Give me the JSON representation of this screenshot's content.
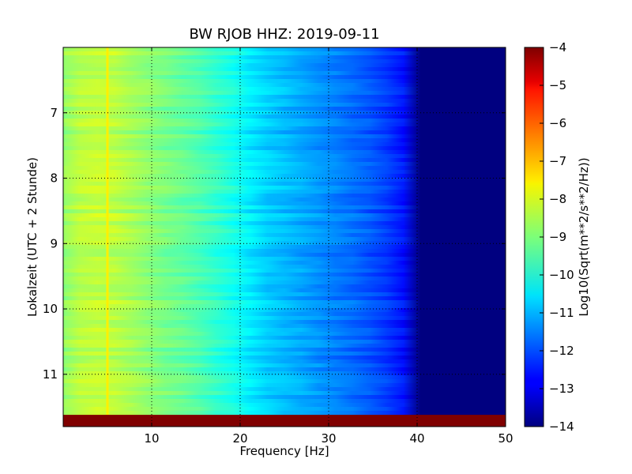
{
  "chart_data": {
    "type": "heatmap",
    "title": "BW RJOB HHZ: 2019-09-11",
    "xlabel": "Frequency [Hz]",
    "ylabel": "Lokalzeit (UTC + 2 Stunde)",
    "colorbar_label": "Log10(Sqrt(m**2/s**2/Hz))",
    "x_range": [
      0,
      50
    ],
    "y_range": [
      6.0,
      11.8
    ],
    "y_inverted": true,
    "x_ticks": [
      10,
      20,
      30,
      40,
      50
    ],
    "y_ticks": [
      7,
      8,
      9,
      10,
      11
    ],
    "colorbar_range": [
      -14,
      -4
    ],
    "colorbar_ticks": [
      -4,
      -5,
      -6,
      -7,
      -8,
      -9,
      -10,
      -11,
      -12,
      -13,
      -14
    ],
    "colormap": "jet",
    "grid": true,
    "profile": {
      "frequency": [
        0,
        2,
        5,
        10,
        15,
        19,
        22,
        26,
        30,
        34,
        38,
        39.5,
        40,
        50
      ],
      "log_amplitude": [
        -8.8,
        -8.4,
        -8.3,
        -8.9,
        -9.4,
        -10.0,
        -10.6,
        -11.0,
        -11.4,
        -11.8,
        -12.4,
        -13.0,
        -14.0,
        -14.0
      ]
    },
    "spectral_lines": [
      {
        "frequency": 5.0,
        "log_amplitude": -7.6
      }
    ],
    "gap_rows": [
      {
        "time_start": 11.62,
        "time_end": 11.8,
        "log_amplitude": -4.0
      }
    ]
  }
}
